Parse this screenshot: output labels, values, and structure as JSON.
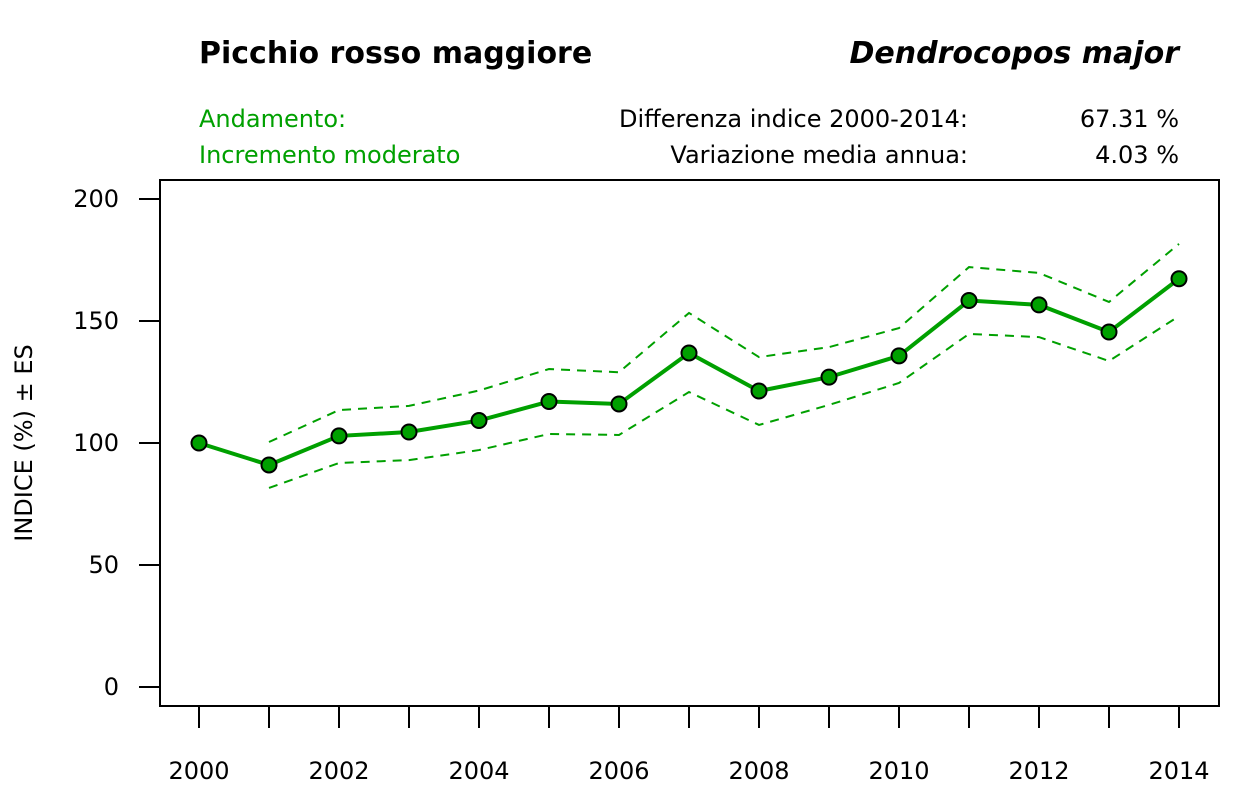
{
  "header": {
    "common_name": "Picchio rosso maggiore",
    "scientific_name": "Dendrocopos major",
    "trend_label": "Andamento:",
    "trend_value": "Incremento moderato",
    "diff_label": "Differenza indice 2000-2014:",
    "diff_value": "67.31 %",
    "annual_label": "Variazione media annua:",
    "annual_value": "4.03 %"
  },
  "colors": {
    "series": "#00a000",
    "marker_fill": "#00a000",
    "marker_stroke": "#000000",
    "trend_text": "#00a000",
    "axis": "#000000"
  },
  "chart_data": {
    "type": "line",
    "title": "Picchio rosso maggiore — Dendrocopos major",
    "xlabel": "",
    "ylabel": "INDICE (%) ± ES",
    "xlim": [
      2000,
      2014
    ],
    "ylim": [
      0,
      200
    ],
    "x_ticks": [
      2000,
      2001,
      2002,
      2003,
      2004,
      2005,
      2006,
      2007,
      2008,
      2009,
      2010,
      2011,
      2012,
      2013,
      2014
    ],
    "x_tick_labels": [
      "2000",
      "2002",
      "2004",
      "2006",
      "2008",
      "2010",
      "2012",
      "2014"
    ],
    "x_tick_label_years": [
      2000,
      2002,
      2004,
      2006,
      2008,
      2010,
      2012,
      2014
    ],
    "y_ticks": [
      0,
      50,
      100,
      150,
      200
    ],
    "y_tick_labels": [
      "0",
      "50",
      "100",
      "150",
      "200"
    ],
    "grid": false,
    "x": [
      2000,
      2001,
      2002,
      2003,
      2004,
      2005,
      2006,
      2007,
      2008,
      2009,
      2010,
      2011,
      2012,
      2013,
      2014
    ],
    "series": [
      {
        "name": "Indice",
        "style": "solid-with-markers",
        "values": [
          100,
          91.0,
          102.9,
          104.5,
          109.2,
          117.0,
          116.0,
          136.9,
          121.3,
          127.0,
          135.7,
          158.4,
          156.6,
          145.5,
          167.31
        ]
      },
      {
        "name": "Indice + ES",
        "style": "dashed",
        "start_index": 1,
        "values": [
          null,
          100.4,
          113.5,
          115.2,
          121.5,
          130.3,
          129.0,
          153.3,
          135.2,
          139.3,
          147.1,
          172.1,
          169.7,
          157.8,
          181.6
        ]
      },
      {
        "name": "Indice - ES",
        "style": "dashed",
        "start_index": 1,
        "values": [
          null,
          81.6,
          91.8,
          93.0,
          97.1,
          103.7,
          103.3,
          120.9,
          107.4,
          115.6,
          124.6,
          144.7,
          143.4,
          133.6,
          152.0
        ]
      }
    ]
  }
}
